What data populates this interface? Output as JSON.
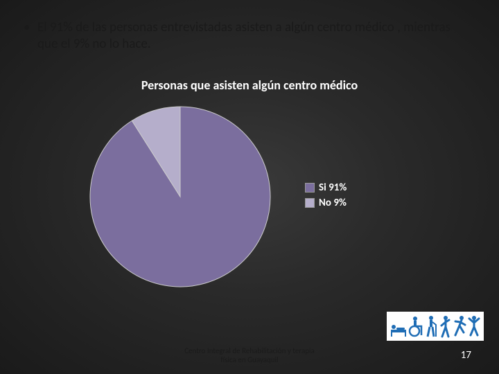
{
  "bullet": "El 91% de las personas entrevistadas asisten a algún centro médico , mientras que el 9% no lo hace.",
  "chart": {
    "type": "pie",
    "title": "Personas que asisten algún centro médico",
    "title_color": "#ffffff",
    "title_fontsize": 18,
    "title_fontweight": "bold",
    "background": "transparent",
    "slices": [
      {
        "label": "Si 91%",
        "value": 91,
        "color": "#7b6e9e"
      },
      {
        "label": "No 9%",
        "value": 9,
        "color": "#b5aecb"
      }
    ],
    "start_angle_deg": -90,
    "radius": 130,
    "stroke_color": "#cccccc",
    "stroke_width": 1,
    "legend": {
      "position": "right",
      "font_color": "#ffffff",
      "font_size": 15,
      "font_weight": "bold",
      "swatch_size": 14,
      "swatch_border": "#999999"
    }
  },
  "footer_line1": "Centro Integral de Rehabilitación y terapia",
  "footer_line2": "física en Guayaquil",
  "page_number": "17",
  "icon_color": "#1f6db5",
  "slide_bg_inner": "#3a3a3a",
  "slide_bg_outer": "#1a1a1a"
}
